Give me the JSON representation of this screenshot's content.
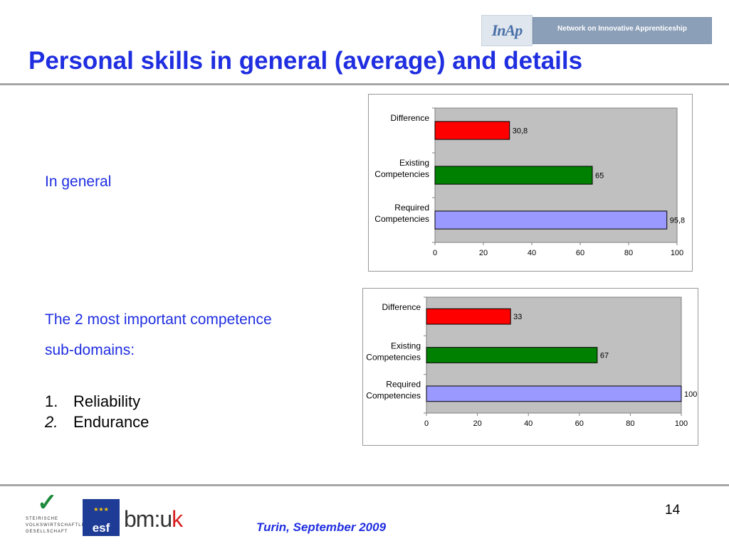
{
  "header": {
    "logo_text": "InAp",
    "network_text": "Network on Innovative Apprenticeship",
    "title": "Personal skills in general  (average) and details"
  },
  "left": {
    "in_general": "In general",
    "competence_line1": "The 2 most important competence",
    "competence_line2": "sub-domains:",
    "items": [
      {
        "num": "1.",
        "label": "Reliability"
      },
      {
        "num": "2.",
        "label": "Endurance"
      }
    ]
  },
  "chart_data": [
    {
      "type": "bar",
      "orientation": "horizontal",
      "categories": [
        "Difference",
        "Existing Competencies",
        "Required Competencies"
      ],
      "category_lines": [
        [
          "Difference"
        ],
        [
          "Existing",
          "Competencies"
        ],
        [
          "Required",
          "Competencies"
        ]
      ],
      "values": [
        30.8,
        65,
        95.8
      ],
      "value_labels": [
        "30,8",
        "65",
        "95,8"
      ],
      "colors": [
        "#ff0000",
        "#008000",
        "#9999ff"
      ],
      "xlim": [
        0,
        100
      ],
      "ticks": [
        0,
        20,
        40,
        60,
        80,
        100
      ],
      "plot_background": "#c0c0c0",
      "grid": false
    },
    {
      "type": "bar",
      "orientation": "horizontal",
      "categories": [
        "Difference",
        "Existing Competencies",
        "Required Competencies"
      ],
      "category_lines": [
        [
          "Difference"
        ],
        [
          "Existing",
          "Competencies"
        ],
        [
          "Required",
          "Competencies"
        ]
      ],
      "values": [
        33,
        67,
        100
      ],
      "value_labels": [
        "33",
        "67",
        "100"
      ],
      "colors": [
        "#ff0000",
        "#008000",
        "#9999ff"
      ],
      "xlim": [
        0,
        100
      ],
      "ticks": [
        0,
        20,
        40,
        60,
        80,
        100
      ],
      "plot_background": "#c0c0c0",
      "grid": false
    }
  ],
  "footer": {
    "page_number": "14",
    "text": "Turin, September 2009",
    "steirische_lines": [
      "STEIRISCHE",
      "VOLKSWIRTSCHAFTLICHE",
      "GESELLSCHAFT"
    ],
    "esf_label": "esf",
    "bmuk_main": "bm:u",
    "bmuk_k": "k"
  }
}
